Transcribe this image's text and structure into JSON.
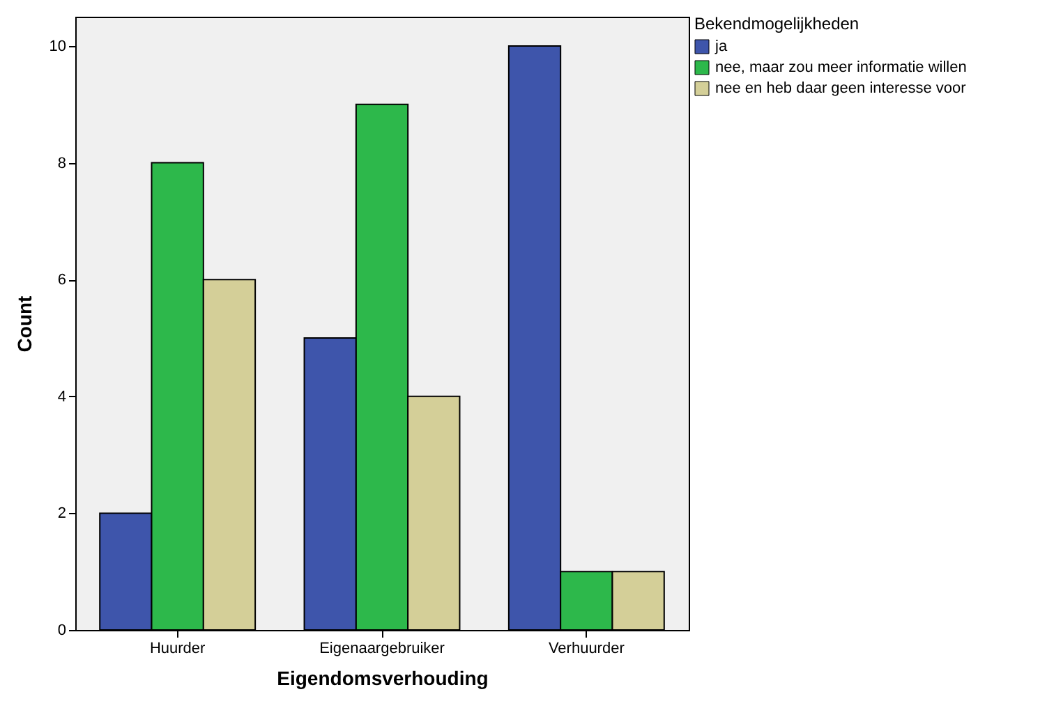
{
  "chart_data": {
    "type": "bar",
    "xlabel": "Eigendomsverhouding",
    "ylabel": "Count",
    "legend_title": "Bekendmogelijkheden",
    "categories": [
      "Huurder",
      "Eigenaargebruiker",
      "Verhuurder"
    ],
    "series": [
      {
        "name": "ja",
        "color": "#3e55ab",
        "values": [
          2,
          5,
          10
        ]
      },
      {
        "name": "nee, maar zou meer informatie willen",
        "color": "#2db84b",
        "values": [
          8,
          9,
          1
        ]
      },
      {
        "name": "nee en heb daar geen interesse voor",
        "color": "#d4cf98",
        "values": [
          6,
          4,
          1
        ]
      }
    ],
    "ylim": [
      0,
      10.5
    ],
    "yticks": [
      0,
      2,
      4,
      6,
      8,
      10
    ],
    "grid": false,
    "legend": "top right"
  }
}
